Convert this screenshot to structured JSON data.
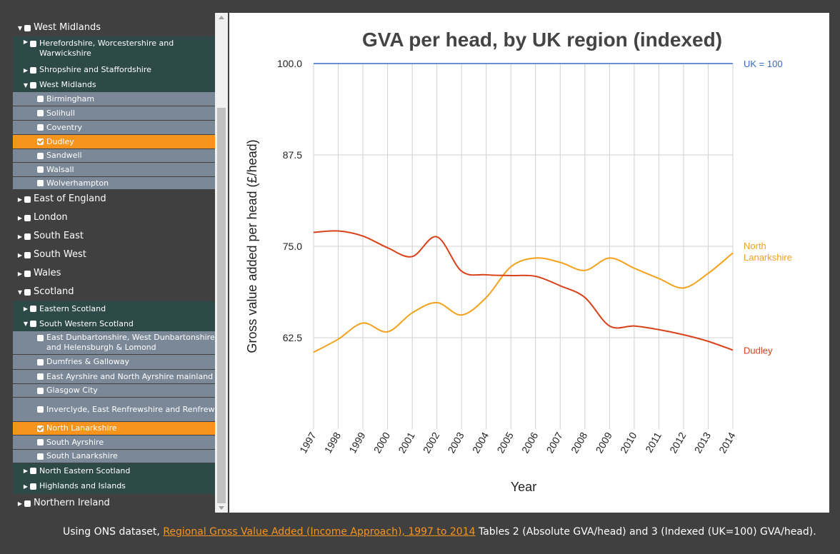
{
  "sidebar": {
    "items": [
      {
        "label": "West Midlands",
        "level": 0,
        "arrow": "down",
        "checked": false
      },
      {
        "label": "Herefordshire, Worcestershire and Warwickshire",
        "level": 1,
        "arrow": "right",
        "checked": false
      },
      {
        "label": "Shropshire and Staffordshire",
        "level": 1,
        "arrow": "right",
        "checked": false
      },
      {
        "label": "West Midlands",
        "level": 1,
        "arrow": "down",
        "checked": false
      },
      {
        "label": "Birmingham",
        "level": 2,
        "checked": false
      },
      {
        "label": "Solihull",
        "level": 2,
        "checked": false
      },
      {
        "label": "Coventry",
        "level": 2,
        "checked": false
      },
      {
        "label": "Dudley",
        "level": 2,
        "checked": true,
        "selected": true
      },
      {
        "label": "Sandwell",
        "level": 2,
        "checked": false
      },
      {
        "label": "Walsall",
        "level": 2,
        "checked": false
      },
      {
        "label": "Wolverhampton",
        "level": 2,
        "checked": false
      },
      {
        "label": "East of England",
        "level": 0,
        "arrow": "right",
        "checked": false
      },
      {
        "label": "London",
        "level": 0,
        "arrow": "right",
        "checked": false
      },
      {
        "label": "South East",
        "level": 0,
        "arrow": "right",
        "checked": false
      },
      {
        "label": "South West",
        "level": 0,
        "arrow": "right",
        "checked": false
      },
      {
        "label": "Wales",
        "level": 0,
        "arrow": "right",
        "checked": false
      },
      {
        "label": "Scotland",
        "level": 0,
        "arrow": "down",
        "checked": false
      },
      {
        "label": "Eastern Scotland",
        "level": 1,
        "arrow": "right",
        "checked": false
      },
      {
        "label": "South Western Scotland",
        "level": 1,
        "arrow": "down",
        "checked": false
      },
      {
        "label": "East Dunbartonshire, West Dunbartonshire and Helensburgh & Lomond",
        "level": 2,
        "checked": false
      },
      {
        "label": "Dumfries & Galloway",
        "level": 2,
        "checked": false
      },
      {
        "label": "East Ayrshire and North Ayrshire mainland",
        "level": 2,
        "checked": false
      },
      {
        "label": "Glasgow City",
        "level": 2,
        "checked": false
      },
      {
        "label": "Inverclyde, East Renfrewshire and Renfrewshire",
        "level": 2,
        "checked": false
      },
      {
        "label": "North Lanarkshire",
        "level": 2,
        "checked": true,
        "selected": true
      },
      {
        "label": "South Ayrshire",
        "level": 2,
        "checked": false
      },
      {
        "label": "South Lanarkshire",
        "level": 2,
        "checked": false
      },
      {
        "label": "North Eastern Scotland",
        "level": 1,
        "arrow": "right",
        "checked": false
      },
      {
        "label": "Highlands and Islands",
        "level": 1,
        "arrow": "right",
        "checked": false
      },
      {
        "label": "Northern Ireland",
        "level": 0,
        "arrow": "right",
        "checked": false
      }
    ]
  },
  "colors": {
    "level0_bg": "#404040",
    "level1_bg": "#2e4a48",
    "level2_bg": "#7a8898",
    "selected_bg": "#f7941e",
    "uk_line": "#3a68c7",
    "north_lanarkshire": "#f4a11c",
    "dudley": "#d8411a",
    "grid": "#d0d0d0"
  },
  "chart_data": {
    "type": "line",
    "title": "GVA per head, by UK region (indexed)",
    "xlabel": "Year",
    "ylabel": "Gross value added per head (£/head)",
    "x": [
      "1997",
      "1998",
      "1999",
      "2000",
      "2001",
      "2002",
      "2003",
      "2004",
      "2005",
      "2006",
      "2007",
      "2008",
      "2009",
      "2010",
      "2011",
      "2012",
      "2013",
      "2014"
    ],
    "yticks": [
      "62.5",
      "75.0",
      "87.5",
      "100.0"
    ],
    "ylim": [
      50,
      100
    ],
    "grid": true,
    "series": [
      {
        "name": "UK = 100",
        "color": "#3a68c7",
        "values": [
          100,
          100,
          100,
          100,
          100,
          100,
          100,
          100,
          100,
          100,
          100,
          100,
          100,
          100,
          100,
          100,
          100,
          100
        ]
      },
      {
        "name": "North Lanarkshire",
        "color": "#f4a11c",
        "values": [
          60.5,
          62.3,
          64.5,
          63.3,
          65.9,
          67.3,
          65.6,
          68.0,
          72.2,
          73.4,
          72.8,
          71.7,
          73.4,
          72.0,
          70.6,
          69.3,
          71.3,
          74.1
        ]
      },
      {
        "name": "Dudley",
        "color": "#d8411a",
        "values": [
          76.9,
          77.1,
          76.4,
          74.8,
          73.6,
          76.3,
          71.6,
          71.1,
          71.0,
          70.9,
          69.6,
          68.0,
          64.1,
          64.1,
          63.6,
          62.9,
          62.0,
          60.8
        ]
      }
    ],
    "legend_placement": "right, inline at line ends"
  },
  "footer": {
    "prefix": "Using ONS dataset, ",
    "link_text": "Regional Gross Value Added (Income Approach), 1997 to 2014",
    "suffix": " Tables 2 (Absolute GVA/head) and 3 (Indexed (UK=100) GVA/head)."
  }
}
